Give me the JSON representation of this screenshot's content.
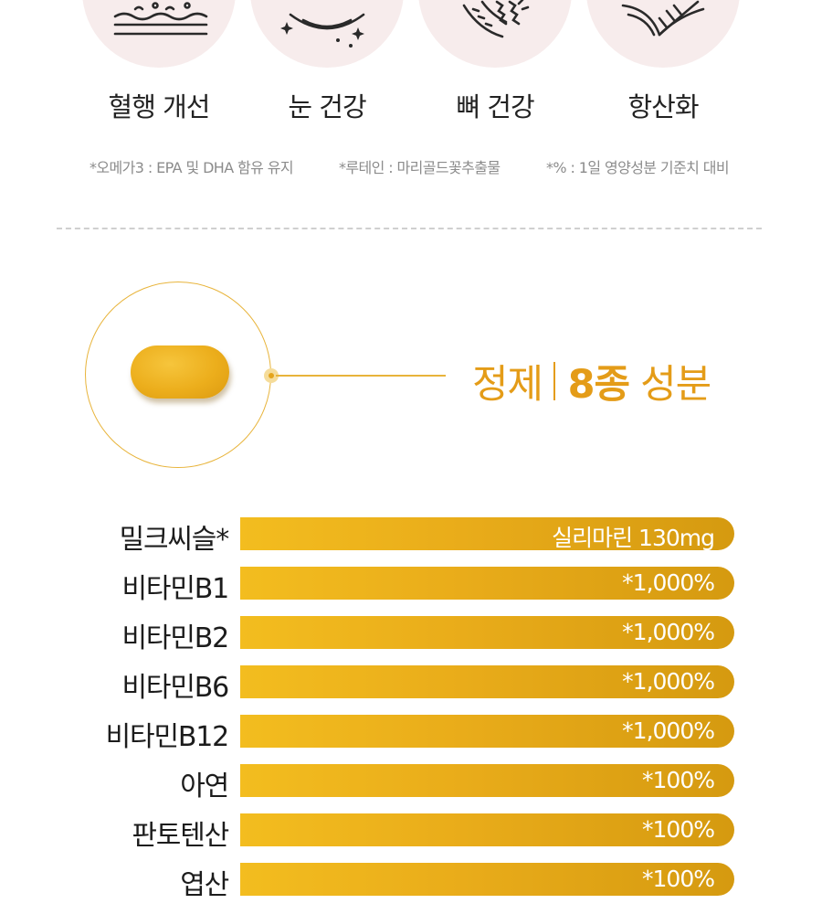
{
  "benefits": [
    {
      "label": "혈행 개선",
      "icon": "blood-flow-icon"
    },
    {
      "label": "눈 건강",
      "icon": "eye-icon"
    },
    {
      "label": "뼈 건강",
      "icon": "bone-icon"
    },
    {
      "label": "항산화",
      "icon": "antioxidant-icon"
    }
  ],
  "footnotes": [
    "*오메가3 : EPA 및 DHA 함유 유지",
    "*루테인 : 마리골드꽃추출물",
    "*% : 1일 영양성분 기준치 대비"
  ],
  "tablet_section": {
    "heading_left": "정제",
    "heading_count": "8종",
    "heading_right": "성분"
  },
  "ingredients": [
    {
      "name": "밀크씨슬*",
      "value": "실리마린 130mg",
      "break": false
    },
    {
      "name": "비타민B1",
      "value": "*1,000%",
      "break": true
    },
    {
      "name": "비타민B2",
      "value": "*1,000%",
      "break": true
    },
    {
      "name": "비타민B6",
      "value": "*1,000%",
      "break": true
    },
    {
      "name": "비타민B12",
      "value": "*1,000%",
      "break": true
    },
    {
      "name": "아연",
      "value": "*100%",
      "break": false
    },
    {
      "name": "판토텐산",
      "value": "*100%",
      "break": false
    },
    {
      "name": "엽산",
      "value": "*100%",
      "break": false
    }
  ],
  "colors": {
    "accent": "#e49c18",
    "bar_start": "#f3bd1f",
    "bar_end": "#d59a10",
    "icon_bg": "#f7ecec"
  }
}
